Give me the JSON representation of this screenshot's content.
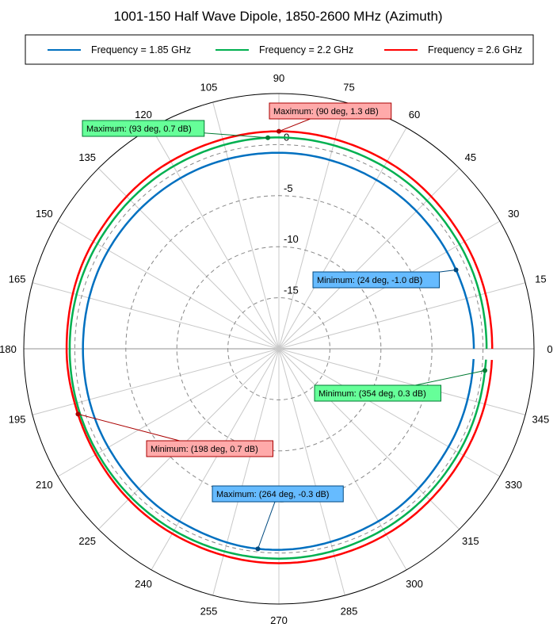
{
  "chart_data": {
    "type": "polar-line",
    "title": "1001-150 Half Wave Dipole, 1850-2600 MHz (Azimuth)",
    "angle_unit": "deg",
    "angle_ticks": [
      0,
      15,
      30,
      45,
      60,
      75,
      90,
      105,
      120,
      135,
      150,
      165,
      180,
      195,
      210,
      225,
      240,
      255,
      270,
      285,
      300,
      315,
      330,
      345
    ],
    "radial_unit": "dB",
    "radial_range": [
      -20,
      5
    ],
    "radial_ticks": [
      0,
      -5,
      -10,
      -15
    ],
    "radial_tick_labels": [
      "0",
      "-5",
      "-10",
      "-15"
    ],
    "grid": true,
    "legend_placement": "top",
    "series": [
      {
        "name": "Frequency = 1.85 GHz",
        "color": "#0070c0",
        "angles": [
          0,
          24,
          60,
          90,
          120,
          150,
          180,
          210,
          240,
          264,
          300,
          330,
          357
        ],
        "values": [
          -0.9,
          -1.0,
          -0.9,
          -0.8,
          -0.7,
          -0.7,
          -0.8,
          -0.7,
          -0.5,
          -0.3,
          -0.5,
          -0.8,
          -0.9
        ]
      },
      {
        "name": "Frequency = 2.2 GHz",
        "color": "#00b050",
        "angles": [
          0,
          30,
          60,
          93,
          120,
          150,
          180,
          210,
          240,
          270,
          300,
          330,
          354,
          357
        ],
        "values": [
          0.35,
          0.45,
          0.6,
          0.7,
          0.65,
          0.55,
          0.5,
          0.5,
          0.55,
          0.55,
          0.45,
          0.35,
          0.3,
          0.32
        ]
      },
      {
        "name": "Frequency = 2.6 GHz",
        "color": "#ff0000",
        "angles": [
          0,
          30,
          60,
          90,
          120,
          150,
          180,
          198,
          240,
          270,
          300,
          330,
          357
        ],
        "values": [
          0.9,
          1.0,
          1.2,
          1.3,
          1.2,
          1.0,
          0.8,
          0.7,
          0.9,
          1.0,
          1.0,
          0.9,
          0.9
        ]
      }
    ],
    "annotations": [
      {
        "series": 1,
        "label": "Maximum: (93 deg, 0.7 dB)",
        "angle": 93,
        "value": 0.7,
        "fill": "#66ff99",
        "stroke": "#007a33"
      },
      {
        "series": 2,
        "label": "Maximum: (90 deg, 1.3 dB)",
        "angle": 90,
        "value": 1.3,
        "fill": "#ffaaaa",
        "stroke": "#aa0000"
      },
      {
        "series": 0,
        "label": "Minimum: (24 deg, -1.0 dB)",
        "angle": 24,
        "value": -1.0,
        "fill": "#66bbff",
        "stroke": "#004a80"
      },
      {
        "series": 1,
        "label": "Minimum: (354 deg, 0.3 dB)",
        "angle": 354,
        "value": 0.3,
        "fill": "#66ff99",
        "stroke": "#007a33"
      },
      {
        "series": 2,
        "label": "Minimum: (198 deg, 0.7 dB)",
        "angle": 198,
        "value": 0.7,
        "fill": "#ffaaaa",
        "stroke": "#aa0000"
      },
      {
        "series": 0,
        "label": "Maximum: (264 deg, -0.3 dB)",
        "angle": 264,
        "value": -0.3,
        "fill": "#66bbff",
        "stroke": "#004a80"
      }
    ]
  }
}
